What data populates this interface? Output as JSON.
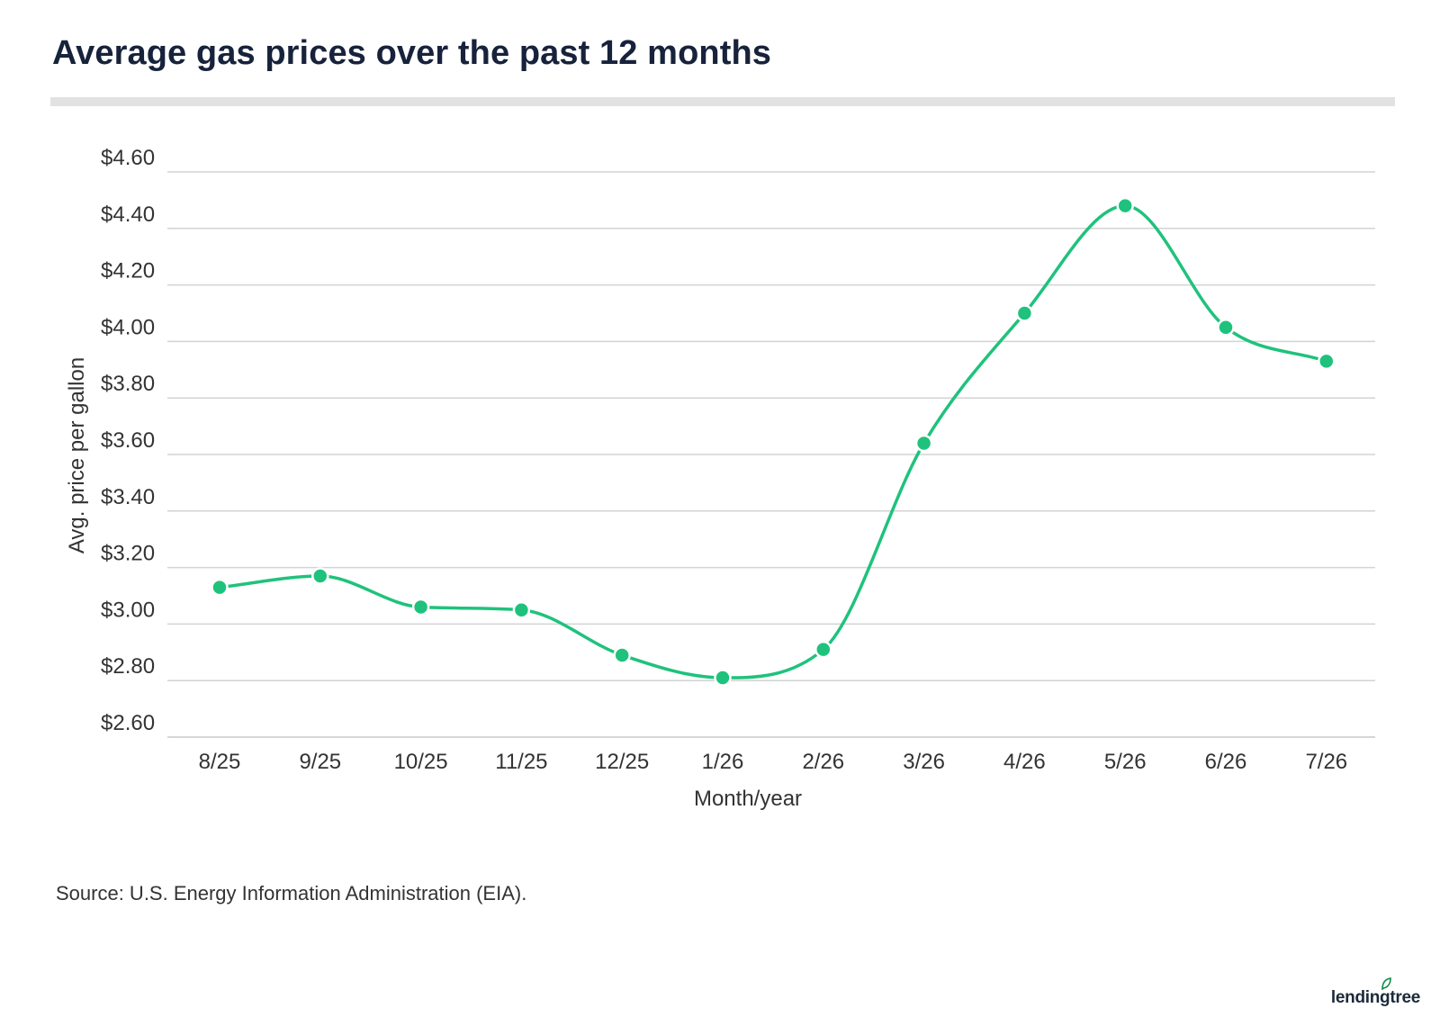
{
  "title": "Average gas prices over the past 12 months",
  "source": "Source: U.S. Energy Information Administration (EIA).",
  "brand": {
    "name": "lendingtree",
    "icon": "leaf-icon",
    "color": "#0e8a4a"
  },
  "colors": {
    "series": "#1fc27c",
    "title": "#17223b",
    "grid": "#d3d3d3",
    "rule": "#e2e2e2"
  },
  "chart_data": {
    "type": "line",
    "xlabel": "Month/year",
    "ylabel": "Avg. price per gallon",
    "categories": [
      "8/25",
      "9/25",
      "10/25",
      "11/25",
      "12/25",
      "1/26",
      "2/26",
      "3/26",
      "4/26",
      "5/26",
      "6/26",
      "7/26"
    ],
    "series": [
      {
        "values": [
          3.13,
          3.17,
          3.06,
          3.05,
          2.89,
          2.81,
          2.91,
          3.64,
          4.1,
          4.48,
          4.05,
          3.93
        ]
      }
    ],
    "ylim": [
      2.6,
      4.6
    ],
    "yticks": [
      2.6,
      2.8,
      3.0,
      3.2,
      3.4,
      3.6,
      3.8,
      4.0,
      4.2,
      4.4,
      4.6
    ],
    "ytick_labels": [
      "$2.60",
      "$2.80",
      "$3.00",
      "$3.20",
      "$3.40",
      "$3.60",
      "$3.80",
      "$4.00",
      "$4.20",
      "$4.40",
      "$4.60"
    ],
    "grid": true,
    "smooth": true,
    "markers": true
  }
}
